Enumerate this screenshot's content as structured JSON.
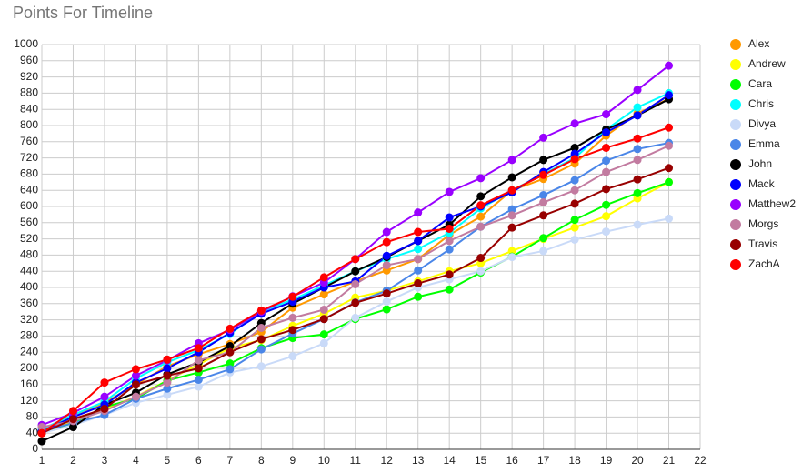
{
  "chart_data": {
    "type": "line",
    "title": "Points For Timeline",
    "x": [
      1,
      2,
      3,
      4,
      5,
      6,
      7,
      8,
      9,
      10,
      11,
      12,
      13,
      14,
      15,
      16,
      17,
      18,
      19,
      20,
      21
    ],
    "xlim": [
      1,
      22
    ],
    "xticks": [
      1,
      2,
      3,
      4,
      5,
      6,
      7,
      8,
      9,
      10,
      11,
      12,
      13,
      14,
      15,
      16,
      17,
      18,
      19,
      20,
      21,
      22
    ],
    "ylim": [
      0,
      1000
    ],
    "yticks": [
      0,
      40,
      80,
      120,
      160,
      200,
      240,
      280,
      320,
      360,
      400,
      440,
      480,
      520,
      560,
      600,
      640,
      680,
      720,
      760,
      800,
      840,
      880,
      920,
      960,
      1000
    ],
    "grid": true,
    "legend": "right",
    "series": [
      {
        "name": "Alex",
        "color": "#ff9900",
        "values": [
          45,
          85,
          115,
          160,
          205,
          235,
          260,
          290,
          350,
          383,
          415,
          442,
          470,
          530,
          575,
          640,
          668,
          706,
          775,
          830,
          866
        ]
      },
      {
        "name": "Andrew",
        "color": "#ffff00",
        "values": [
          40,
          70,
          100,
          130,
          170,
          210,
          250,
          270,
          305,
          335,
          375,
          392,
          415,
          440,
          460,
          490,
          520,
          548,
          576,
          620,
          660
        ]
      },
      {
        "name": "Cara",
        "color": "#00ff00",
        "values": [
          40,
          65,
          105,
          125,
          170,
          190,
          212,
          250,
          275,
          284,
          322,
          346,
          377,
          395,
          437,
          476,
          522,
          567,
          604,
          633,
          660
        ]
      },
      {
        "name": "Chris",
        "color": "#00ffff",
        "values": [
          50,
          85,
          118,
          175,
          215,
          245,
          285,
          340,
          370,
          405,
          440,
          470,
          495,
          535,
          595,
          640,
          680,
          720,
          790,
          845,
          880
        ]
      },
      {
        "name": "Divya",
        "color": "#c9daf8",
        "values": [
          40,
          60,
          85,
          115,
          135,
          155,
          190,
          205,
          230,
          262,
          325,
          365,
          400,
          420,
          440,
          475,
          490,
          518,
          538,
          555,
          570
        ]
      },
      {
        "name": "Emma",
        "color": "#4a86e8",
        "values": [
          45,
          65,
          85,
          125,
          150,
          172,
          198,
          247,
          286,
          322,
          363,
          392,
          442,
          494,
          550,
          593,
          628,
          665,
          713,
          742,
          757
        ]
      },
      {
        "name": "John",
        "color": "#000000",
        "values": [
          20,
          55,
          110,
          140,
          185,
          215,
          255,
          312,
          360,
          400,
          440,
          475,
          515,
          555,
          625,
          672,
          715,
          745,
          790,
          825,
          865
        ]
      },
      {
        "name": "Mack",
        "color": "#0000ff",
        "values": [
          45,
          80,
          110,
          165,
          200,
          240,
          288,
          335,
          365,
          400,
          415,
          478,
          515,
          573,
          600,
          635,
          685,
          730,
          783,
          825,
          875
        ]
      },
      {
        "name": "Matthew2",
        "color": "#9900ff",
        "values": [
          60,
          90,
          130,
          182,
          220,
          262,
          295,
          340,
          378,
          412,
          470,
          537,
          585,
          636,
          670,
          715,
          770,
          805,
          828,
          888,
          948
        ]
      },
      {
        "name": "Morgs",
        "color": "#c27ba0",
        "values": [
          55,
          70,
          95,
          130,
          165,
          220,
          240,
          300,
          325,
          345,
          408,
          455,
          470,
          515,
          550,
          578,
          610,
          640,
          685,
          715,
          750
        ]
      },
      {
        "name": "Travis",
        "color": "#980000",
        "values": [
          40,
          75,
          100,
          160,
          182,
          200,
          240,
          272,
          295,
          322,
          362,
          385,
          410,
          432,
          473,
          548,
          578,
          607,
          643,
          667,
          695
        ]
      },
      {
        "name": "ZachA",
        "color": "#ff0000",
        "values": [
          40,
          95,
          165,
          198,
          222,
          250,
          298,
          343,
          377,
          425,
          470,
          512,
          537,
          545,
          603,
          640,
          678,
          717,
          745,
          768,
          795
        ]
      }
    ]
  }
}
